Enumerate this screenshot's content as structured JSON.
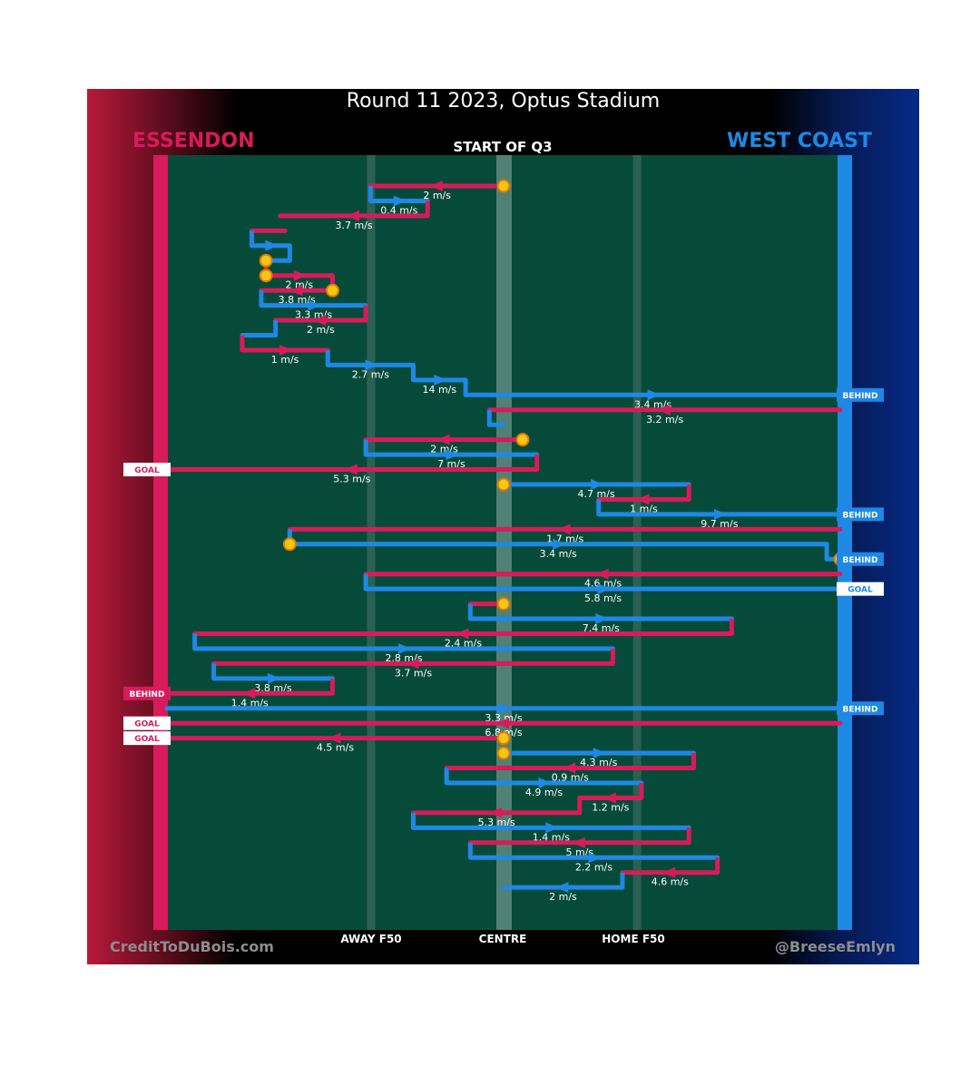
{
  "title": "Round 11 2023, Optus Stadium",
  "subtitle": "START OF Q3",
  "teams": {
    "left": "ESSENDON",
    "right": "WEST COAST"
  },
  "colors": {
    "left_team": "#d81b5a",
    "right_team": "#1e88e5",
    "field": "#064b3a",
    "ball": "#f5c518"
  },
  "axis_labels": {
    "away": "AWAY F50",
    "centre": "CENTRE",
    "home": "HOME F50"
  },
  "footer": {
    "left": "CreditToDuBois.com",
    "right": "@BreeseEmlyn"
  },
  "chains": [
    {
      "team": "ess",
      "from": 0,
      "to": -28,
      "speed": "2 m/s",
      "ball": "start"
    },
    {
      "team": "wce",
      "from": -28,
      "to": -16,
      "speed": "0.4 m/s"
    },
    {
      "team": "ess",
      "from": -16,
      "to": -47,
      "speed": "3.7 m/s"
    },
    {
      "team": "ess",
      "from": -46,
      "to": -53,
      "speed": ""
    },
    {
      "team": "wce",
      "from": -53,
      "to": -45,
      "speed": ""
    },
    {
      "team": "wce",
      "from": -45,
      "to": -50,
      "speed": "",
      "ball": "end"
    },
    {
      "team": "ess",
      "from": -50,
      "to": -36,
      "speed": "2 m/s",
      "ball": "start"
    },
    {
      "team": "ess",
      "from": -36,
      "to": -51,
      "speed": "3.8 m/s",
      "ball": "start"
    },
    {
      "team": "wce",
      "from": -51,
      "to": -29,
      "speed": "3.3 m/s"
    },
    {
      "team": "ess",
      "from": -29,
      "to": -48,
      "speed": "2 m/s"
    },
    {
      "team": "wce",
      "from": -48,
      "to": -55,
      "speed": ""
    },
    {
      "team": "ess",
      "from": -55,
      "to": -37,
      "speed": "1 m/s"
    },
    {
      "team": "wce",
      "from": -37,
      "to": -19,
      "speed": "2.7 m/s"
    },
    {
      "team": "wce",
      "from": -19,
      "to": -8,
      "speed": "14 m/s"
    },
    {
      "team": "wce",
      "from": -8,
      "to": 69,
      "speed": "3.4 m/s",
      "tag": "BEHIND"
    },
    {
      "team": "ess",
      "from": 69,
      "to": -3,
      "speed": "3.2 m/s"
    },
    {
      "team": "wce",
      "from": -3,
      "to": 0,
      "speed": ""
    },
    {
      "team": "ess",
      "from": 4,
      "to": -29,
      "speed": "2 m/s",
      "ball": "start"
    },
    {
      "team": "wce",
      "from": -29,
      "to": 7,
      "speed": "7 m/s"
    },
    {
      "team": "ess",
      "from": 7,
      "to": -69,
      "speed": "5.3 m/s",
      "tag": "GOAL"
    },
    {
      "team": "wce",
      "from": 0,
      "to": 39,
      "speed": "4.7 m/s",
      "ball": "start"
    },
    {
      "team": "ess",
      "from": 39,
      "to": 20,
      "speed": "1 m/s"
    },
    {
      "team": "wce",
      "from": 20,
      "to": 69,
      "speed": "9.7 m/s",
      "tag": "BEHIND"
    },
    {
      "team": "ess",
      "from": 69,
      "to": -45,
      "speed": "1.7 m/s"
    },
    {
      "team": "wce",
      "from": -45,
      "to": 68,
      "speed": "3.4 m/s",
      "ball": "start"
    },
    {
      "team": "wce",
      "from": 68,
      "to": 69,
      "speed": "",
      "tag": "BEHIND",
      "ball": "end"
    },
    {
      "team": "ess",
      "from": 69,
      "to": -29,
      "speed": "4.6 m/s"
    },
    {
      "team": "wce",
      "from": -29,
      "to": 69,
      "speed": "5.8 m/s",
      "tag": "GOAL"
    },
    {
      "team": "ess",
      "from": 0,
      "to": -7,
      "speed": "",
      "ball": "start"
    },
    {
      "team": "wce",
      "from": -7,
      "to": 48,
      "speed": "7.4 m/s"
    },
    {
      "team": "ess",
      "from": 48,
      "to": -65,
      "speed": "2.4 m/s"
    },
    {
      "team": "wce",
      "from": -65,
      "to": 23,
      "speed": "2.8 m/s"
    },
    {
      "team": "ess",
      "from": 23,
      "to": -61,
      "speed": "3.7 m/s"
    },
    {
      "team": "wce",
      "from": -61,
      "to": -36,
      "speed": "3.8 m/s"
    },
    {
      "team": "ess",
      "from": -36,
      "to": -69,
      "speed": "1.4 m/s",
      "tag": "BEHIND"
    },
    {
      "team": "wce",
      "from": -69,
      "to": 69,
      "speed": "3.3 m/s",
      "tag": "BEHIND"
    },
    {
      "team": "ess",
      "from": 69,
      "to": -69,
      "speed": "6.8 m/s",
      "tag": "GOAL"
    },
    {
      "team": "ess",
      "from": 0,
      "to": -69,
      "speed": "4.5 m/s",
      "tag": "GOAL",
      "ball": "start"
    },
    {
      "team": "wce",
      "from": 0,
      "to": 40,
      "speed": "4.3 m/s",
      "ball": "start"
    },
    {
      "team": "ess",
      "from": 40,
      "to": -12,
      "speed": "0.9 m/s"
    },
    {
      "team": "wce",
      "from": -12,
      "to": 29,
      "speed": "4.9 m/s"
    },
    {
      "team": "ess",
      "from": 29,
      "to": 16,
      "speed": "1.2 m/s"
    },
    {
      "team": "ess",
      "from": 16,
      "to": -19,
      "speed": "5.3 m/s"
    },
    {
      "team": "wce",
      "from": -19,
      "to": 39,
      "speed": "1.4 m/s"
    },
    {
      "team": "ess",
      "from": 39,
      "to": -7,
      "speed": "5 m/s"
    },
    {
      "team": "wce",
      "from": -7,
      "to": 45,
      "speed": "2.2 m/s"
    },
    {
      "team": "ess",
      "from": 45,
      "to": 25,
      "speed": "4.6 m/s"
    },
    {
      "team": "wce",
      "from": 25,
      "to": 0,
      "speed": "2 m/s"
    }
  ]
}
